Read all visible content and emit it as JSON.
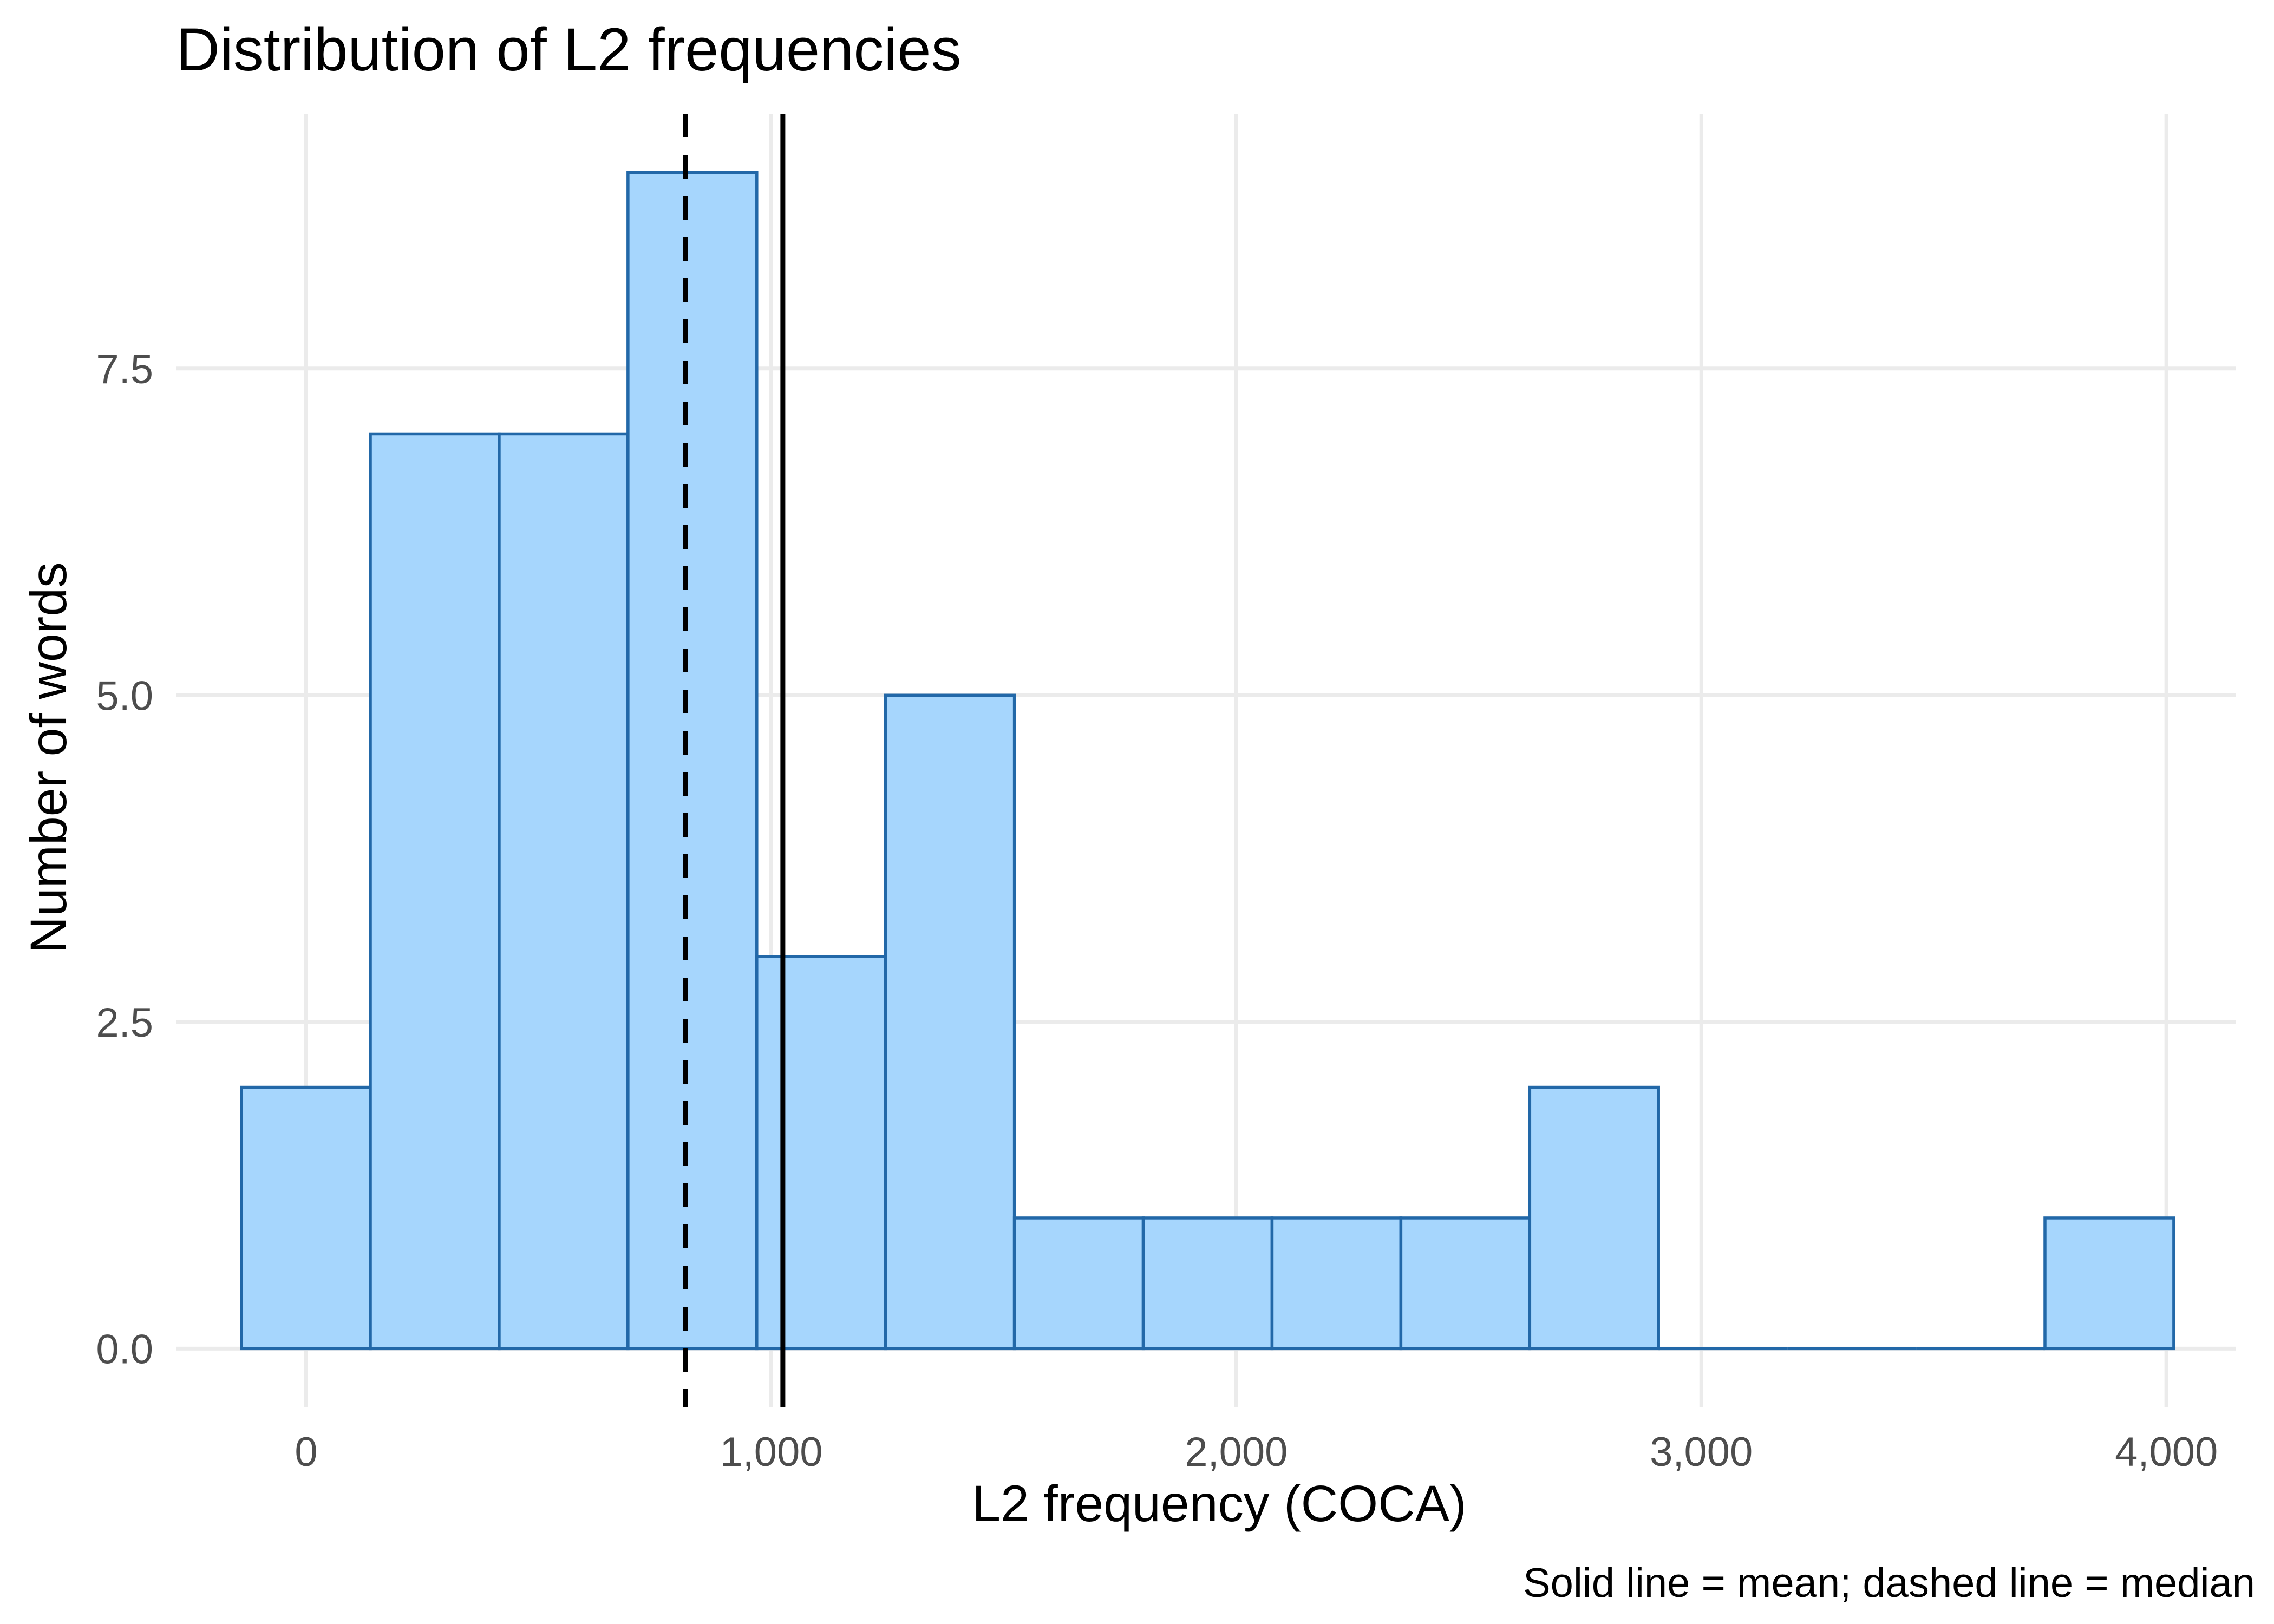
{
  "chart_data": {
    "type": "bar",
    "title": "Distribution of L2 frequencies",
    "xlabel": "L2 frequency (COCA)",
    "ylabel": "Number of words",
    "caption": "Solid line = mean; dashed line = median",
    "bin_width": 277,
    "bins": [
      {
        "start": -139,
        "end": 138,
        "count": 2
      },
      {
        "start": 138,
        "end": 415,
        "count": 7
      },
      {
        "start": 415,
        "end": 692,
        "count": 7
      },
      {
        "start": 692,
        "end": 969,
        "count": 9
      },
      {
        "start": 969,
        "end": 1246,
        "count": 3
      },
      {
        "start": 1246,
        "end": 1523,
        "count": 5
      },
      {
        "start": 1523,
        "end": 1800,
        "count": 1
      },
      {
        "start": 1800,
        "end": 2077,
        "count": 1
      },
      {
        "start": 2077,
        "end": 2354,
        "count": 1
      },
      {
        "start": 2354,
        "end": 2631,
        "count": 1
      },
      {
        "start": 2631,
        "end": 2908,
        "count": 2
      },
      {
        "start": 2908,
        "end": 3185,
        "count": 0
      },
      {
        "start": 3185,
        "end": 3462,
        "count": 0
      },
      {
        "start": 3462,
        "end": 3739,
        "count": 0
      },
      {
        "start": 3739,
        "end": 4016,
        "count": 1
      }
    ],
    "mean": 1025,
    "median": 815,
    "xlim": [
      -280,
      4150
    ],
    "ylim": [
      -0.45,
      9.45
    ],
    "x_ticks": [
      0,
      1000,
      2000,
      3000,
      4000
    ],
    "x_tick_labels": [
      "0",
      "1,000",
      "2,000",
      "3,000",
      "4,000"
    ],
    "y_ticks": [
      0,
      2.5,
      5,
      7.5
    ],
    "y_tick_labels": [
      "0.0",
      "2.5",
      "5.0",
      "7.5"
    ],
    "grid": true,
    "legend": "none",
    "colors": {
      "fill": "#a6d6fd",
      "outline": "#2268a8",
      "reference_lines": "#000000"
    }
  }
}
